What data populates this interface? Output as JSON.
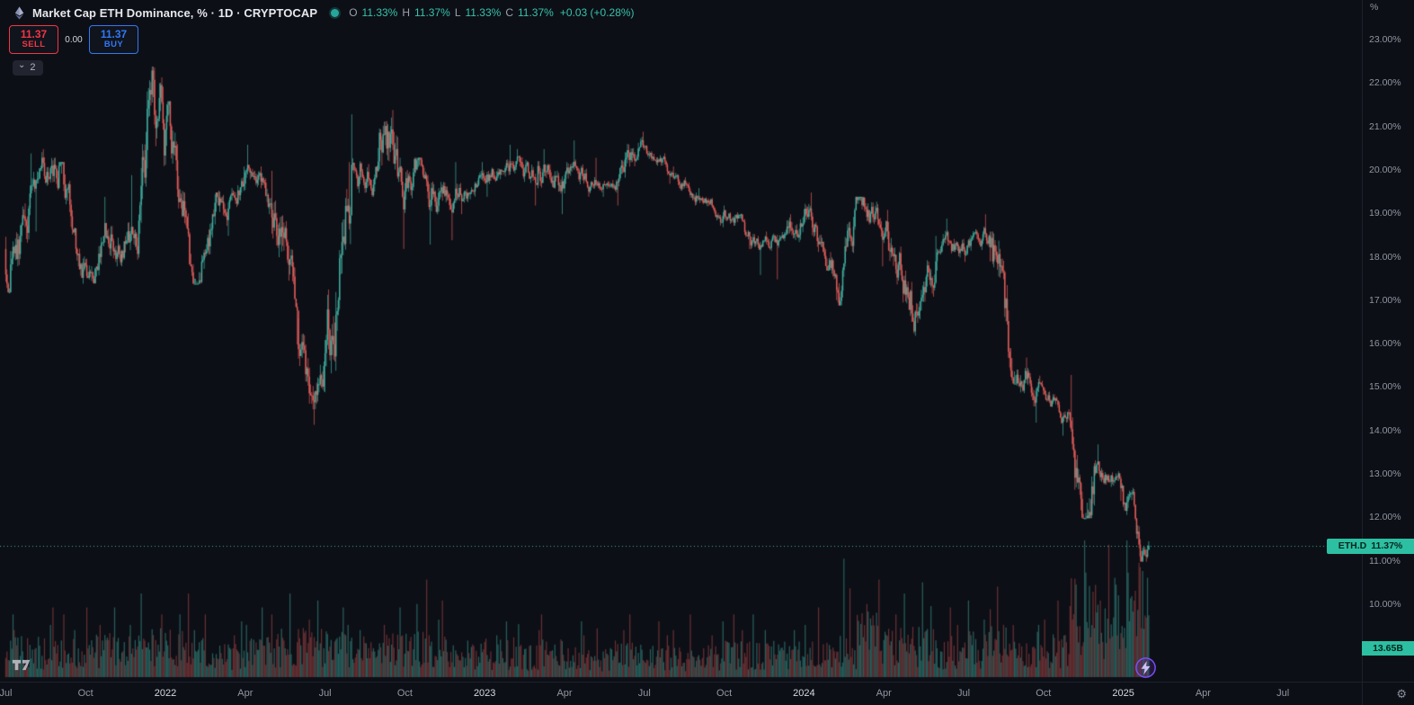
{
  "header": {
    "symbol_title": "Market Cap ETH Dominance, % · 1D · CRYPTOCAP",
    "ohlc": {
      "open_label": "O",
      "open_value": "11.33%",
      "high_label": "H",
      "high_value": "11.37%",
      "low_label": "L",
      "low_value": "11.33%",
      "close_label": "C",
      "close_value": "11.37%",
      "change_value": "+0.03 (+0.28%)"
    },
    "sell": {
      "price": "11.37",
      "label": "SELL"
    },
    "spread": "0.00",
    "buy": {
      "price": "11.37",
      "label": "BUY"
    },
    "object_tree_count": "2"
  },
  "price_scale": {
    "unit": "%",
    "labels": [
      "23.00%",
      "22.00%",
      "21.00%",
      "20.00%",
      "19.00%",
      "18.00%",
      "17.00%",
      "16.00%",
      "15.00%",
      "14.00%",
      "13.00%",
      "12.00%",
      "11.00%",
      "10.00%"
    ],
    "values": [
      23,
      22,
      21,
      20,
      19,
      18,
      17,
      16,
      15,
      14,
      13,
      12,
      11,
      10
    ],
    "price_label": {
      "symbol": "ETH.D",
      "value": "11.37%"
    },
    "volume_label": "13.65B"
  },
  "time_scale": {
    "labels": [
      {
        "text": "Jul",
        "m": 0
      },
      {
        "text": "Oct",
        "m": 3
      },
      {
        "text": "2022",
        "m": 6,
        "major": true
      },
      {
        "text": "Apr",
        "m": 9
      },
      {
        "text": "Jul",
        "m": 12
      },
      {
        "text": "Oct",
        "m": 15
      },
      {
        "text": "2023",
        "m": 18,
        "major": true
      },
      {
        "text": "Apr",
        "m": 21
      },
      {
        "text": "Jul",
        "m": 24
      },
      {
        "text": "Oct",
        "m": 27
      },
      {
        "text": "2024",
        "m": 30,
        "major": true
      },
      {
        "text": "Apr",
        "m": 33
      },
      {
        "text": "Jul",
        "m": 36
      },
      {
        "text": "Oct",
        "m": 39
      },
      {
        "text": "2025",
        "m": 42,
        "major": true
      },
      {
        "text": "Apr",
        "m": 45
      },
      {
        "text": "Jul",
        "m": 48
      }
    ]
  },
  "chart_data": {
    "type": "candlestick",
    "title": "Market Cap ETH Dominance",
    "symbol": "CRYPTOCAP:ETH.D",
    "interval": "1D",
    "unit": "%",
    "y_axis": {
      "min": 10,
      "max": 23,
      "tick_step": 1
    },
    "x_axis": {
      "start": "2021-07",
      "end": "2025-08",
      "data_end": "2025-02"
    },
    "last_price": 11.37,
    "last_change": "+0.03 (+0.28%)",
    "last_volume": "13.65B",
    "legend_position": "top-left",
    "grid": false,
    "monthly_anchors": [
      {
        "month": "2021-07",
        "o": 18.2,
        "h": 20.4,
        "l": 17.2,
        "c": 19.8,
        "vol": 0.18,
        "vmax": 0.45,
        "lt": 0.12
      },
      {
        "month": "2021-08",
        "o": 19.8,
        "h": 20.5,
        "l": 18.6,
        "c": 20.0,
        "vol": 0.18,
        "vmax": 0.5
      },
      {
        "month": "2021-09",
        "o": 20.0,
        "h": 20.2,
        "l": 17.4,
        "c": 17.6,
        "vol": 0.18,
        "vmax": 0.45,
        "lt": 0.95
      },
      {
        "month": "2021-10",
        "o": 17.6,
        "h": 19.4,
        "l": 17.4,
        "c": 18.6,
        "vol": 0.2,
        "vmax": 0.5
      },
      {
        "month": "2021-11",
        "o": 18.6,
        "h": 19.9,
        "l": 17.8,
        "c": 18.3,
        "vol": 0.2,
        "vmax": 0.5
      },
      {
        "month": "2021-12",
        "o": 18.3,
        "h": 22.4,
        "l": 18.0,
        "c": 20.6,
        "vol": 0.22,
        "vmax": 0.6,
        "ht": 0.55
      },
      {
        "month": "2022-01",
        "o": 20.6,
        "h": 21.6,
        "l": 17.8,
        "c": 18.0,
        "vol": 0.22,
        "vmax": 0.6,
        "ht": 0.12
      },
      {
        "month": "2022-02",
        "o": 18.0,
        "h": 19.5,
        "l": 17.4,
        "c": 19.2,
        "vol": 0.18,
        "vmax": 0.45,
        "lt": 0.15
      },
      {
        "month": "2022-03",
        "o": 19.2,
        "h": 20.1,
        "l": 18.5,
        "c": 19.9,
        "vol": 0.16,
        "vmax": 0.4
      },
      {
        "month": "2022-04",
        "o": 19.9,
        "h": 20.6,
        "l": 19.0,
        "c": 19.3,
        "vol": 0.18,
        "vmax": 0.5
      },
      {
        "month": "2022-05",
        "o": 19.3,
        "h": 20.0,
        "l": 16.0,
        "c": 16.4,
        "vol": 0.22,
        "vmax": 0.6
      },
      {
        "month": "2022-06",
        "o": 16.4,
        "h": 16.6,
        "l": 14.15,
        "c": 15.2,
        "vol": 0.22,
        "vmax": 0.55,
        "lt": 0.6
      },
      {
        "month": "2022-07",
        "o": 15.2,
        "h": 20.2,
        "l": 14.9,
        "c": 19.9,
        "vol": 0.2,
        "vmax": 0.5,
        "lt": 0.08
      },
      {
        "month": "2022-08",
        "o": 19.9,
        "h": 21.3,
        "l": 19.4,
        "c": 20.1,
        "vol": 0.18,
        "vmax": 0.45
      },
      {
        "month": "2022-09",
        "o": 20.1,
        "h": 21.4,
        "l": 18.2,
        "c": 19.2,
        "vol": 0.2,
        "vmax": 0.5,
        "ht": 0.12
      },
      {
        "month": "2022-10",
        "o": 19.2,
        "h": 20.3,
        "l": 18.3,
        "c": 19.4,
        "vol": 0.2,
        "vmax": 0.7,
        "ht": 0.6
      },
      {
        "month": "2022-11",
        "o": 19.4,
        "h": 20.2,
        "l": 18.4,
        "c": 19.5,
        "vol": 0.2,
        "vmax": 0.55
      },
      {
        "month": "2022-12",
        "o": 19.5,
        "h": 20.2,
        "l": 19.0,
        "c": 19.7,
        "vol": 0.15,
        "vmax": 0.35
      },
      {
        "month": "2023-01",
        "o": 19.7,
        "h": 20.6,
        "l": 19.4,
        "c": 20.2,
        "vol": 0.17,
        "vmax": 0.4
      },
      {
        "month": "2023-02",
        "o": 20.2,
        "h": 20.5,
        "l": 19.2,
        "c": 19.9,
        "vol": 0.15,
        "vmax": 0.38
      },
      {
        "month": "2023-03",
        "o": 19.9,
        "h": 20.5,
        "l": 19.0,
        "c": 19.8,
        "vol": 0.17,
        "vmax": 0.45
      },
      {
        "month": "2023-04",
        "o": 19.8,
        "h": 20.7,
        "l": 19.4,
        "c": 19.7,
        "vol": 0.15,
        "vmax": 0.4
      },
      {
        "month": "2023-05",
        "o": 19.7,
        "h": 20.3,
        "l": 19.4,
        "c": 19.8,
        "vol": 0.13,
        "vmax": 0.35
      },
      {
        "month": "2023-06",
        "o": 19.8,
        "h": 20.9,
        "l": 19.2,
        "c": 20.5,
        "vol": 0.15,
        "vmax": 0.45,
        "ht": 0.9
      },
      {
        "month": "2023-07",
        "o": 20.5,
        "h": 20.6,
        "l": 19.7,
        "c": 20.0,
        "vol": 0.14,
        "vmax": 0.4
      },
      {
        "month": "2023-08",
        "o": 20.0,
        "h": 20.1,
        "l": 19.2,
        "c": 19.5,
        "vol": 0.14,
        "vmax": 0.45
      },
      {
        "month": "2023-09",
        "o": 19.5,
        "h": 19.6,
        "l": 18.7,
        "c": 19.0,
        "vol": 0.14,
        "vmax": 0.4
      },
      {
        "month": "2023-10",
        "o": 19.0,
        "h": 19.2,
        "l": 18.2,
        "c": 18.4,
        "vol": 0.16,
        "vmax": 0.45
      },
      {
        "month": "2023-11",
        "o": 18.4,
        "h": 18.6,
        "l": 17.6,
        "c": 18.3,
        "vol": 0.16,
        "vmax": 0.45
      },
      {
        "month": "2023-12",
        "o": 18.3,
        "h": 19.0,
        "l": 17.5,
        "c": 18.8,
        "vol": 0.16,
        "vmax": 0.45
      },
      {
        "month": "2024-01",
        "o": 18.8,
        "h": 19.5,
        "l": 17.7,
        "c": 18.0,
        "vol": 0.18,
        "vmax": 0.5
      },
      {
        "month": "2024-02",
        "o": 18.0,
        "h": 19.4,
        "l": 16.9,
        "c": 19.3,
        "vol": 0.18,
        "vmax": 0.85,
        "lt": 0.45
      },
      {
        "month": "2024-03",
        "o": 19.3,
        "h": 19.4,
        "l": 17.8,
        "c": 18.6,
        "vol": 0.3,
        "vmax": 0.7,
        "ht": 0.08
      },
      {
        "month": "2024-04",
        "o": 18.6,
        "h": 19.1,
        "l": 16.8,
        "c": 17.3,
        "vol": 0.22,
        "vmax": 0.6
      },
      {
        "month": "2024-05",
        "o": 17.3,
        "h": 18.5,
        "l": 16.2,
        "c": 18.2,
        "vol": 0.22,
        "vmax": 0.68,
        "lt": 0.15
      },
      {
        "month": "2024-06",
        "o": 18.2,
        "h": 18.9,
        "l": 17.7,
        "c": 18.3,
        "vol": 0.18,
        "vmax": 0.5
      },
      {
        "month": "2024-07",
        "o": 18.3,
        "h": 19.0,
        "l": 17.9,
        "c": 18.5,
        "vol": 0.2,
        "vmax": 0.55
      },
      {
        "month": "2024-08",
        "o": 18.5,
        "h": 18.6,
        "l": 15.1,
        "c": 15.4,
        "vol": 0.25,
        "vmax": 0.65,
        "lt": 0.9
      },
      {
        "month": "2024-09",
        "o": 15.4,
        "h": 15.7,
        "l": 14.2,
        "c": 14.9,
        "vol": 0.2,
        "vmax": 0.5
      },
      {
        "month": "2024-10",
        "o": 14.9,
        "h": 15.0,
        "l": 13.9,
        "c": 14.3,
        "vol": 0.2,
        "vmax": 0.55
      },
      {
        "month": "2024-11",
        "o": 14.3,
        "h": 15.3,
        "l": 12.0,
        "c": 13.3,
        "vol": 0.45,
        "vmax": 1.0,
        "lt": 0.55
      },
      {
        "month": "2024-12",
        "o": 13.3,
        "h": 13.7,
        "l": 12.4,
        "c": 12.6,
        "vol": 0.42,
        "vmax": 0.95
      },
      {
        "month": "2025-01",
        "o": 12.6,
        "h": 12.7,
        "l": 11.0,
        "c": 11.37,
        "vol": 0.5,
        "vmax": 1.0,
        "lt": 0.97
      }
    ]
  },
  "colors": {
    "background": "#0d0f16",
    "up": "#3fae9f",
    "down": "#e05d5a",
    "volume_up": "rgba(63,174,159,0.5)",
    "volume_down": "rgba(224,93,90,0.42)",
    "last_price_line": "#3fae9f",
    "price_label_bg": "#2dbfa2",
    "sell_red": "#f23645",
    "buy_blue": "#3179f5",
    "axis_text": "#9096a1"
  }
}
